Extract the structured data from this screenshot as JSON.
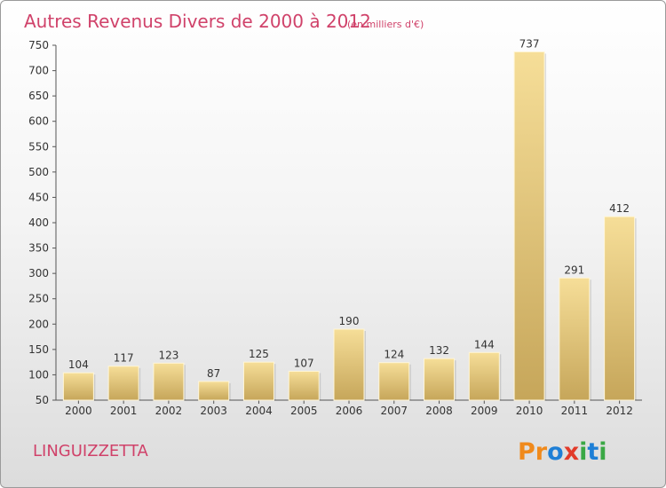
{
  "chart_data": {
    "type": "bar",
    "title": "Autres Revenus Divers de 2000 à 2012",
    "subtitle": "(en milliers d'€)",
    "xlabel": "",
    "ylabel": "",
    "categories": [
      "2000",
      "2001",
      "2002",
      "2003",
      "2004",
      "2005",
      "2006",
      "2007",
      "2008",
      "2009",
      "2010",
      "2011",
      "2012"
    ],
    "values": [
      104,
      117,
      123,
      87,
      125,
      107,
      190,
      124,
      132,
      144,
      737,
      291,
      412
    ],
    "ylim": [
      50,
      750
    ],
    "yticks": [
      50,
      100,
      150,
      200,
      250,
      300,
      350,
      400,
      450,
      500,
      550,
      600,
      650,
      700,
      750
    ],
    "grid": false,
    "legend": "none"
  },
  "commune": "LINGUIZZETTA",
  "logo": {
    "letters": [
      "P",
      "r",
      "o",
      "x",
      "i",
      "t",
      "i"
    ],
    "colors": [
      "#f08a1c",
      "#f08a1c",
      "#1e7fd6",
      "#e23b2a",
      "#3aa845",
      "#1e7fd6",
      "#3aa845"
    ]
  },
  "colors": {
    "title": "#d0426a",
    "bar_light": "#f5dc95",
    "bar_dark": "#c8a85c",
    "axis": "#555555"
  }
}
